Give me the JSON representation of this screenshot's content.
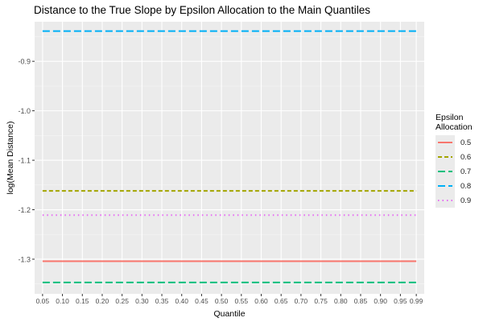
{
  "chart_data": {
    "type": "line",
    "title": "Distance to the True Slope by Epsilon Allocation to the Main Quantiles",
    "xlabel": "Quantile",
    "ylabel": "log(Mean Distance)",
    "x": [
      0.05,
      0.1,
      0.15,
      0.2,
      0.25,
      0.3,
      0.35,
      0.4,
      0.45,
      0.5,
      0.55,
      0.6,
      0.65,
      0.7,
      0.75,
      0.8,
      0.85,
      0.9,
      0.95,
      0.99
    ],
    "x_tick_labels": [
      "0.05",
      "0.10",
      "0.15",
      "0.20",
      "0.25",
      "0.30",
      "0.35",
      "0.40",
      "0.45",
      "0.50",
      "0.55",
      "0.60",
      "0.65",
      "0.70",
      "0.75",
      "0.80",
      "0.85",
      "0.90",
      "0.95",
      "0.99"
    ],
    "y_ticks": [
      -1.3,
      -1.2,
      -1.1,
      -1.0,
      -0.9
    ],
    "y_tick_labels": [
      "-1.3",
      "-1.2",
      "-1.1",
      "-1.0",
      "-0.9"
    ],
    "ylim": [
      -1.37,
      -0.82
    ],
    "xlim": [
      0.03,
      1.01
    ],
    "grid": true,
    "legend": {
      "title": "Epsilon\nAllocation",
      "placement": "right"
    },
    "series": [
      {
        "name": "0.5",
        "value": -1.304,
        "color": "#F8766D",
        "linetype": "solid"
      },
      {
        "name": "0.6",
        "value": -1.162,
        "color": "#A3A500",
        "linetype": "dashed"
      },
      {
        "name": "0.7",
        "value": -1.347,
        "color": "#00BF7D",
        "linetype": "longdash"
      },
      {
        "name": "0.8",
        "value": -0.839,
        "color": "#00B0F6",
        "linetype": "longdash"
      },
      {
        "name": "0.9",
        "value": -1.211,
        "color": "#E76BF3",
        "linetype": "dotted"
      }
    ]
  }
}
